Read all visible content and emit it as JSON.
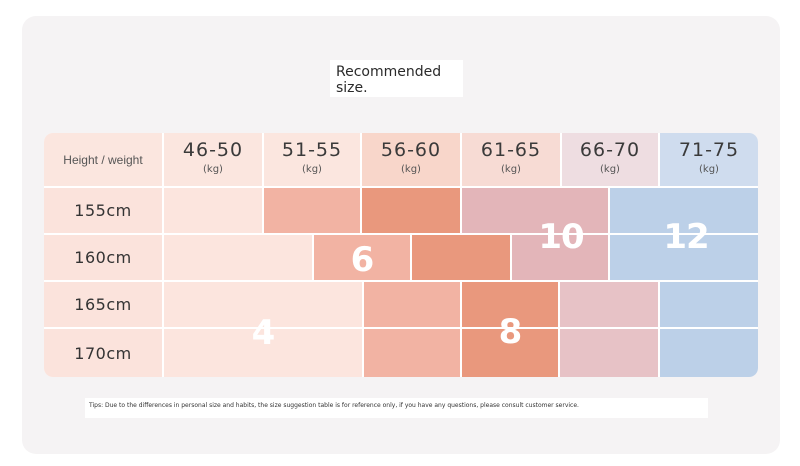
{
  "title": "Recommended size.",
  "header": {
    "corner_label": "Height / weight",
    "weights": [
      {
        "range": "46-50",
        "unit": "(kg)"
      },
      {
        "range": "51-55",
        "unit": "(kg)"
      },
      {
        "range": "56-60",
        "unit": "(kg)"
      },
      {
        "range": "61-65",
        "unit": "(kg)"
      },
      {
        "range": "66-70",
        "unit": "(kg)"
      },
      {
        "range": "71-75",
        "unit": "(kg)"
      }
    ]
  },
  "heights": [
    "155cm",
    "160cm",
    "165cm",
    "170cm"
  ],
  "sizes": [
    {
      "label": "4",
      "color": "#f6d3c9"
    },
    {
      "label": "6",
      "color": "#efab9b"
    },
    {
      "label": "8",
      "color": "#eba189"
    },
    {
      "label": "10",
      "color": "#e2b5b9"
    },
    {
      "label": "12",
      "color": "#b8cde6"
    }
  ],
  "colors": {
    "header_bg": "#fbe6df",
    "header_col_3": "#f8d6ca",
    "header_col_4": "#f7dbd4",
    "header_col_5": "#eedde1",
    "header_col_6": "#cfdcee",
    "row_label_bg": "#fbe3dc",
    "light_pink": "#fce5de",
    "medium_salmon": "#f2b3a3",
    "dark_salmon": "#e9987d",
    "pink_mauve": "#e3b5b9",
    "light_pink_mauve": "#e7c2c6",
    "light_blue": "#bcd0e8"
  },
  "tips": "Tips: Due to the differences in personal size and habits, the size suggestion table is for reference only, if you have any questions, please consult customer service."
}
